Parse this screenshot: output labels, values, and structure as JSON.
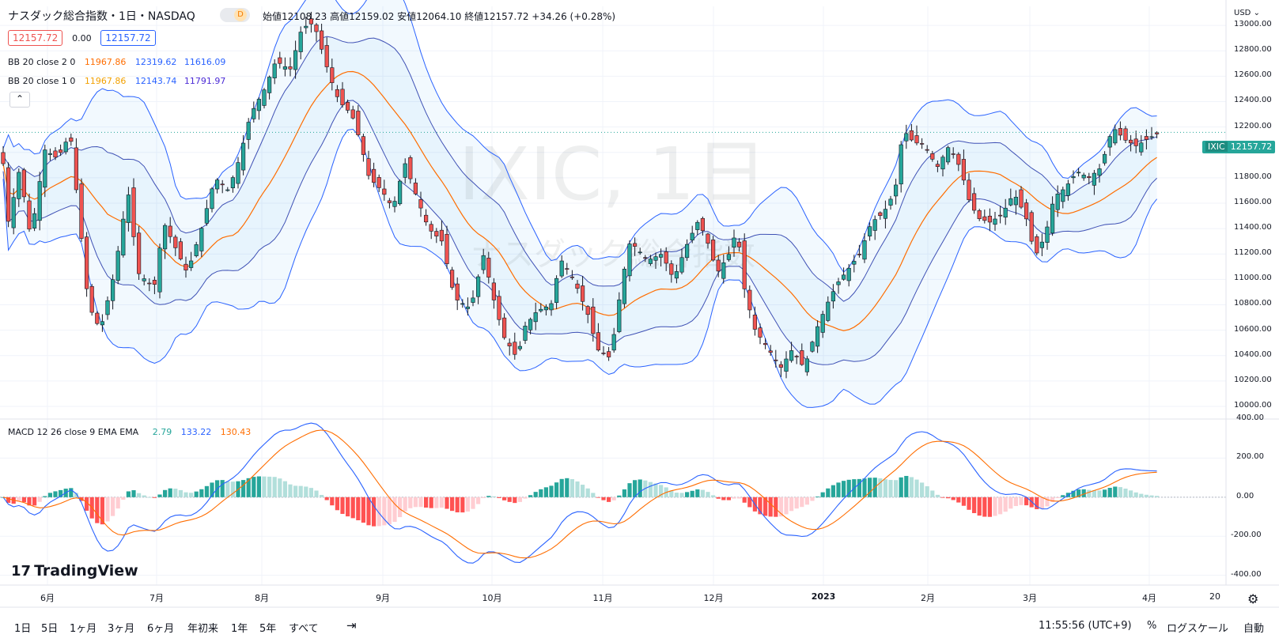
{
  "header": {
    "symbol_title": "ナスダック総合指数・1日・NASDAQ",
    "interval_badge": "D",
    "ohlc": "始値12108.23 高値12159.02 安値12064.10 終値12157.72 +34.26 (+0.28%)"
  },
  "price_row": {
    "bid": "12157.72",
    "spread": "0.00",
    "ask": "12157.72"
  },
  "indicators": {
    "bb2": {
      "label": "BB 20 close 2 0",
      "basis": "11967.86",
      "upper": "12319.62",
      "lower": "11616.09"
    },
    "bb1": {
      "label": "BB 20 close 1 0",
      "basis": "11967.86",
      "upper": "12143.74",
      "lower": "11791.97"
    },
    "macd": {
      "label": "MACD 12 26 close 9 EMA EMA",
      "hist": "2.79",
      "macd": "133.22",
      "signal": "130.43"
    }
  },
  "watermark": {
    "symbol": "IXIC, 1日",
    "name": "ナスダック総合指数"
  },
  "price_axis": {
    "currency": "USD",
    "labels": [
      "13000.00",
      "12800.00",
      "12600.00",
      "12400.00",
      "12200.00",
      "12000.00",
      "11800.00",
      "11600.00",
      "11400.00",
      "11200.00",
      "11000.00",
      "10800.00",
      "10600.00",
      "10400.00",
      "10200.00",
      "10000.00"
    ],
    "last_tag_symbol": "IXIC",
    "last_tag_price": "12157.72"
  },
  "macd_axis": {
    "labels": [
      "400.00",
      "200.00",
      "0.00",
      "-200.00",
      "-400.00"
    ]
  },
  "time_axis": {
    "labels": [
      "6月",
      "7月",
      "8月",
      "9月",
      "10月",
      "11月",
      "12月",
      "2023",
      "2月",
      "3月",
      "4月",
      "20"
    ]
  },
  "logo": "TradingView",
  "bottom_toolbar": {
    "ranges": [
      "1日",
      "5日",
      "1ヶ月",
      "3ヶ月",
      "6ヶ月",
      "年初来",
      "1年",
      "5年",
      "すべて"
    ],
    "clock": "11:55:56 (UTC+9)",
    "percent": "%",
    "log_scale": "ログスケール",
    "auto": "自動"
  },
  "colors": {
    "up": "#26a69a",
    "down": "#ef5350",
    "bb_band": "#2962ff",
    "bb_basis": "#ff6d00",
    "macd_line": "#2962ff",
    "signal_line": "#ff6d00"
  },
  "chart_data": {
    "type": "candlestick",
    "symbol": "IXIC",
    "close_series_approx": [
      {
        "x": "2022-06-01",
        "close": 11990
      },
      {
        "x": "2022-06-16",
        "close": 10650
      },
      {
        "x": "2022-07-01",
        "close": 11130
      },
      {
        "x": "2022-07-22",
        "close": 11830
      },
      {
        "x": "2022-08-15",
        "close": 12950
      },
      {
        "x": "2022-08-31",
        "close": 11800
      },
      {
        "x": "2022-09-30",
        "close": 10580
      },
      {
        "x": "2022-10-13",
        "close": 10100
      },
      {
        "x": "2022-11-03",
        "close": 10350
      },
      {
        "x": "2022-11-30",
        "close": 11470
      },
      {
        "x": "2022-12-28",
        "close": 10210
      },
      {
        "x": "2023-02-02",
        "close": 12200
      },
      {
        "x": "2023-03-13",
        "close": 11190
      },
      {
        "x": "2023-04-14",
        "close": 12123
      },
      {
        "x": "2023-04-18",
        "close": 12157.72
      }
    ],
    "last": {
      "open": 12108.23,
      "high": 12159.02,
      "low": 12064.1,
      "close": 12157.72
    },
    "price_range": [
      9900,
      13150
    ],
    "macd_range": [
      -450,
      400
    ]
  }
}
